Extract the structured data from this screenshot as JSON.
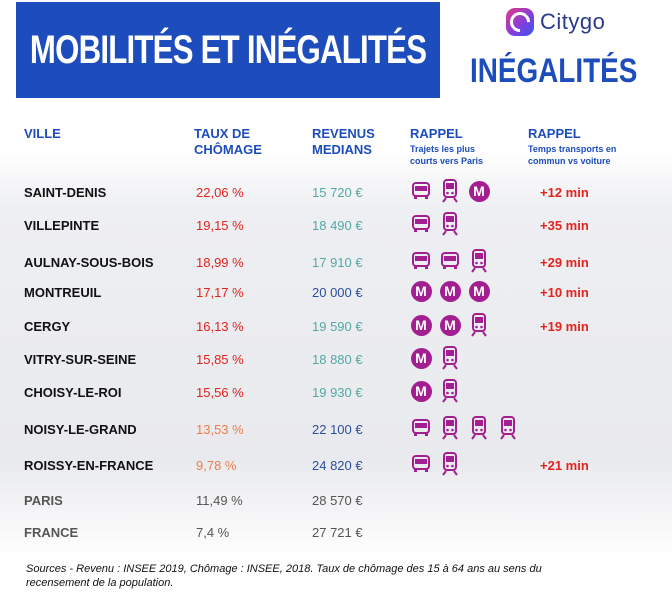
{
  "header": {
    "title": "MOBILITÉS ET INÉGALITÉS",
    "brand": "Citygo",
    "subtitle": "INÉGALITÉS"
  },
  "columns": {
    "city": "VILLE",
    "rate_line1": "TAUX DE",
    "rate_line2": "CHÔMAGE",
    "revenue_line1": "REVENUS",
    "revenue_line2": "MEDIANS",
    "transport_title": "RAPPEL",
    "transport_sub1": "Trajets les plus",
    "transport_sub2": "courts vers Paris",
    "time_title": "RAPPEL",
    "time_sub1": "Temps transports en",
    "time_sub2": "commun vs voiture"
  },
  "rows": [
    {
      "city": "SAINT-DENIS",
      "rate": "22,06 %",
      "revenue": "15 720 €",
      "transports": [
        "bus",
        "train",
        "metro"
      ],
      "extra": "+12 min"
    },
    {
      "city": "VILLEPINTE",
      "rate": "19,15 %",
      "revenue": "18 490 €",
      "transports": [
        "bus",
        "train"
      ],
      "extra": "+35 min"
    },
    {
      "city": "AULNAY-SOUS-BOIS",
      "rate": "18,99 %",
      "revenue": "17 910 €",
      "transports": [
        "bus",
        "bus",
        "train"
      ],
      "extra": "+29 min"
    },
    {
      "city": "MONTREUIL",
      "rate": "17,17 %",
      "revenue": "20 000 €",
      "transports": [
        "metro",
        "metro",
        "metro"
      ],
      "extra": "+10 min"
    },
    {
      "city": "CERGY",
      "rate": "16,13 %",
      "revenue": "19 590 €",
      "transports": [
        "metro",
        "metro",
        "train"
      ],
      "extra": "+19 min"
    },
    {
      "city": "VITRY-SUR-SEINE",
      "rate": "15,85 %",
      "revenue": "18 880 €",
      "transports": [
        "metro",
        "train"
      ],
      "extra": ""
    },
    {
      "city": "CHOISY-LE-ROI",
      "rate": "15,56 %",
      "revenue": "19 930 €",
      "transports": [
        "metro",
        "train"
      ],
      "extra": ""
    },
    {
      "city": "NOISY-LE-GRAND",
      "rate": "13,53 %",
      "revenue": "22 100 €",
      "transports": [
        "bus",
        "train",
        "train",
        "train"
      ],
      "extra": ""
    },
    {
      "city": "ROISSY-EN-FRANCE",
      "rate": "9,78 %",
      "revenue": "24 820 €",
      "transports": [
        "bus",
        "train"
      ],
      "extra": "+21 min"
    }
  ],
  "reference_rows": [
    {
      "city": "PARIS",
      "rate": "11,49 %",
      "revenue": "28 570 €"
    },
    {
      "city": "FRANCE",
      "rate": "7,4 %",
      "revenue": "27 721 €"
    }
  ],
  "metro_letter": "M",
  "sources_line1": "Sources - Revenu : INSEE 2019, Chômage : INSEE, 2018. Taux de chômage des 15 à 64 ans au sens du",
  "sources_line2": "recensement de la population.",
  "colors": {
    "title_blue": "#1d4dbc",
    "icon_purple": "#a21e91",
    "rate_red": "#e3231d",
    "rate_orange": "#ef7d48",
    "revenue_teal": "#54a8a4",
    "revenue_blue": "#2b4f9e",
    "reference_grey": "#555555"
  }
}
